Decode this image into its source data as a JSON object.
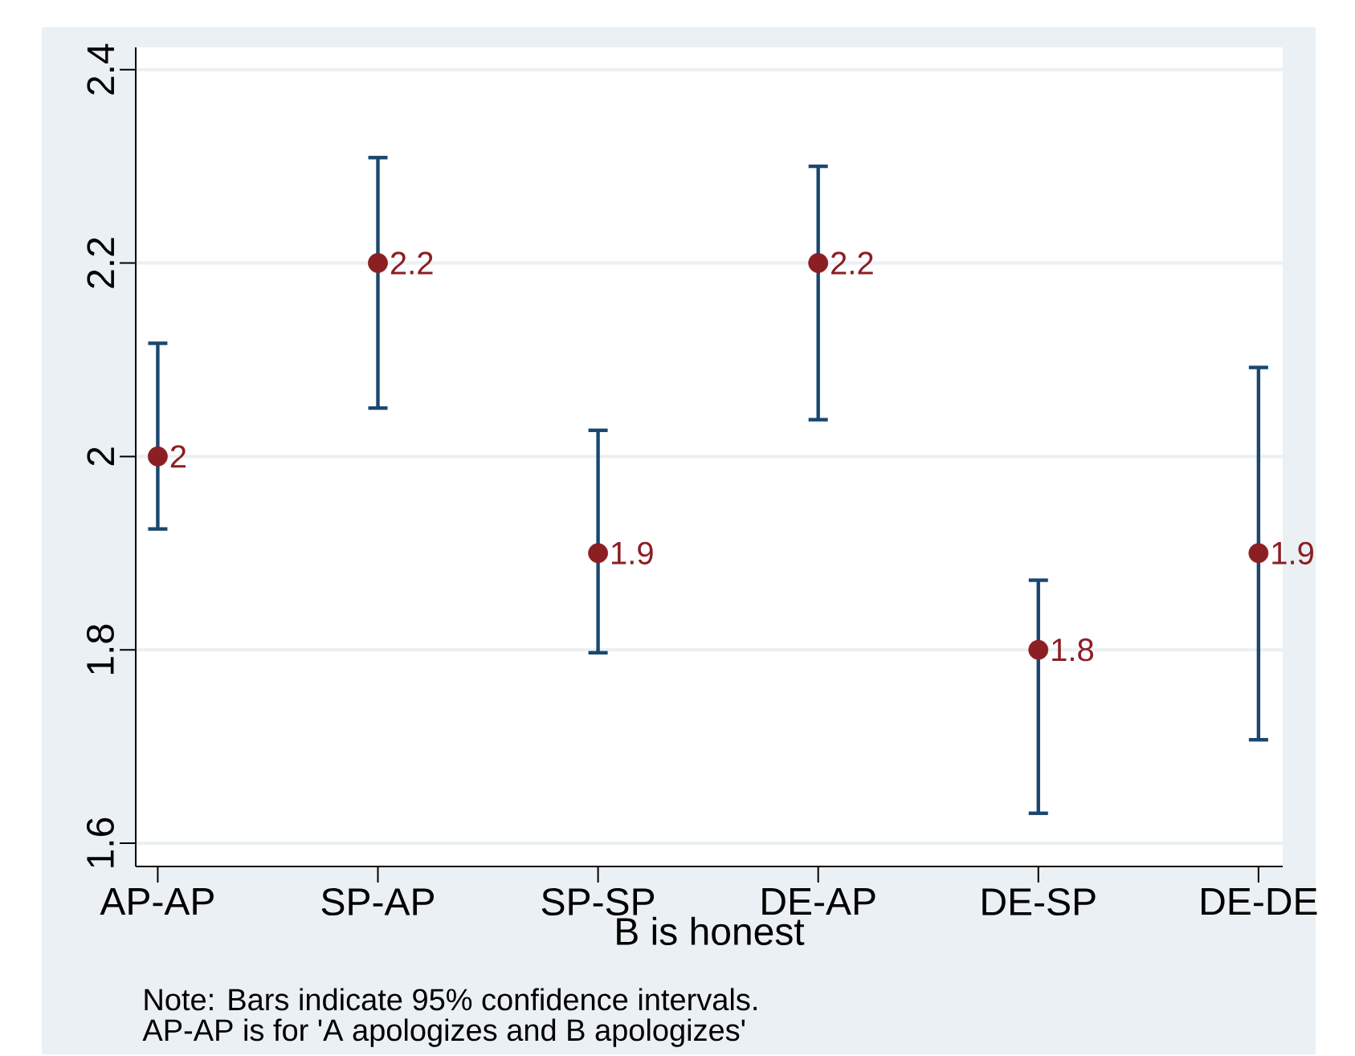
{
  "chart_data": {
    "type": "scatter",
    "xlabel": "B is honest",
    "categories": [
      "AP-AP",
      "SP-AP",
      "SP-SP",
      "DE-AP",
      "DE-SP",
      "DE-DE"
    ],
    "ylim": [
      1.576,
      2.423
    ],
    "yticks": [
      1.6,
      1.8,
      2,
      2.2,
      2.4
    ],
    "grid": "y",
    "marker": "circle",
    "data_labels": true,
    "annotations": [
      "Note: Bars indicate 95% confidence intervals.",
      "AP-AP is for 'A apologizes and B apologizes'"
    ],
    "series": [
      {
        "color": "#8b1f24",
        "values": [
          2,
          2.2,
          1.9,
          2.2,
          1.8,
          1.9
        ],
        "errors": [
          [
            1.925,
            2.117
          ],
          [
            2.05,
            2.309
          ],
          [
            1.797,
            2.027
          ],
          [
            2.038,
            2.3
          ],
          [
            1.631,
            1.872
          ],
          [
            1.707,
            2.092
          ]
        ]
      }
    ]
  }
}
